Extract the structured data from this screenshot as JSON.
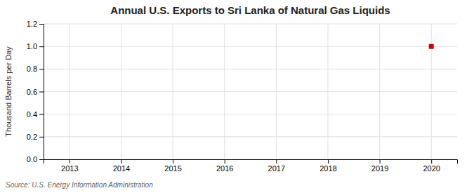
{
  "chart_data": {
    "type": "scatter",
    "title": "Annual U.S. Exports to Sri Lanka of Natural Gas Liquids",
    "y_label": "Thousand Barrels per Day",
    "annotations": [
      "Source: U.S. Energy Information Administration"
    ],
    "x": [
      2020
    ],
    "values": [
      1.0
    ],
    "color": "#cc0000",
    "marker": "square",
    "xlim": [
      2012.5,
      2020.5
    ],
    "ylim": [
      0,
      1.2
    ],
    "xticks": [
      2013,
      2014,
      2015,
      2016,
      2017,
      2018,
      2019,
      2020
    ],
    "yticks": [
      {
        "value": 0.0,
        "label": "0.0"
      },
      0.2,
      0.4,
      0.6,
      0.8,
      {
        "value": 1.0,
        "label": "1.0"
      },
      1.2
    ],
    "grid": true
  }
}
